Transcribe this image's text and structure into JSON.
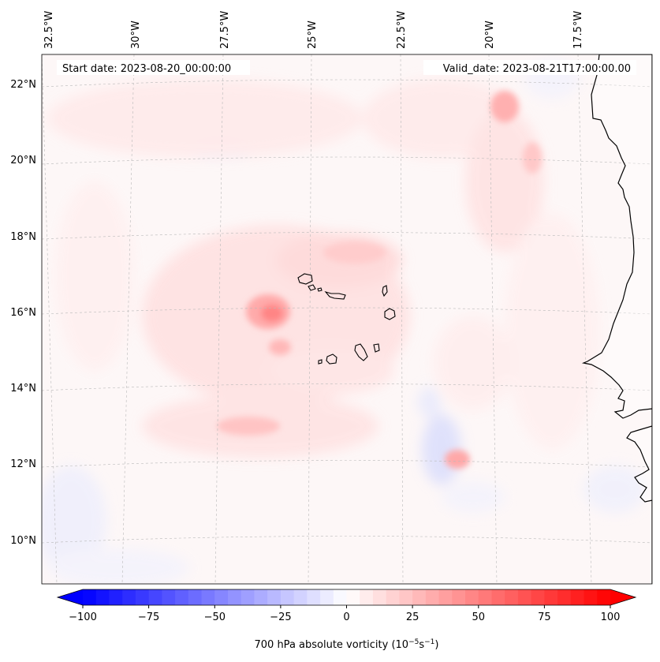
{
  "map": {
    "start_label": "Start date: 2023-08-20_00:00:00",
    "valid_label": "Valid_date: 2023-08-21T17:00:00.00",
    "lon_labels": [
      "32.5°W",
      "30°W",
      "27.5°W",
      "25°W",
      "22.5°W",
      "20°W",
      "17.5°W"
    ],
    "lat_labels": [
      "22°N",
      "20°N",
      "18°N",
      "16°N",
      "14°N",
      "12°N",
      "10°N"
    ],
    "gridlines": true,
    "coastline_color": "#000000"
  },
  "colorbar": {
    "ticks": [
      "−100",
      "−75",
      "−50",
      "−25",
      "0",
      "25",
      "50",
      "75",
      "100"
    ],
    "label_main": "700 hPa absolute vorticity (10",
    "label_sup1": "−5",
    "label_mid": "s",
    "label_sup2": "−1",
    "label_end": ")",
    "colormap": "bwr",
    "low_color": "#0000ff",
    "mid_color": "#ffffff",
    "high_color": "#ff0000"
  }
}
